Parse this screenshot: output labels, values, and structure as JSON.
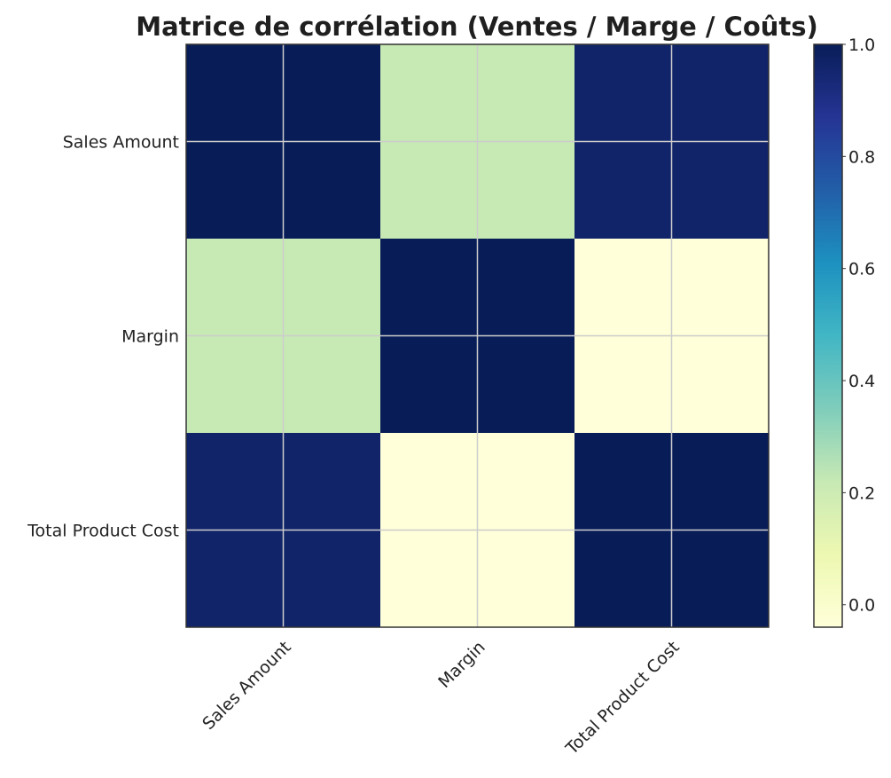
{
  "chart_data": {
    "type": "heatmap",
    "title": "Matrice de corrélation (Ventes / Marge / Coûts)",
    "x_labels": [
      "Sales Amount",
      "Margin",
      "Total Product Cost"
    ],
    "y_labels": [
      "Sales Amount",
      "Margin",
      "Total Product Cost"
    ],
    "values": [
      [
        1.0,
        0.22,
        0.96
      ],
      [
        0.22,
        1.0,
        -0.04
      ],
      [
        0.96,
        -0.04,
        1.0
      ]
    ],
    "colormap": "YlGnBu",
    "vmin": -0.04,
    "vmax": 1.0,
    "colorbar_ticks": [
      "0.0",
      "0.2",
      "0.4",
      "0.6",
      "0.8",
      "1.0"
    ],
    "grid": true,
    "xlabel": "",
    "ylabel": ""
  }
}
